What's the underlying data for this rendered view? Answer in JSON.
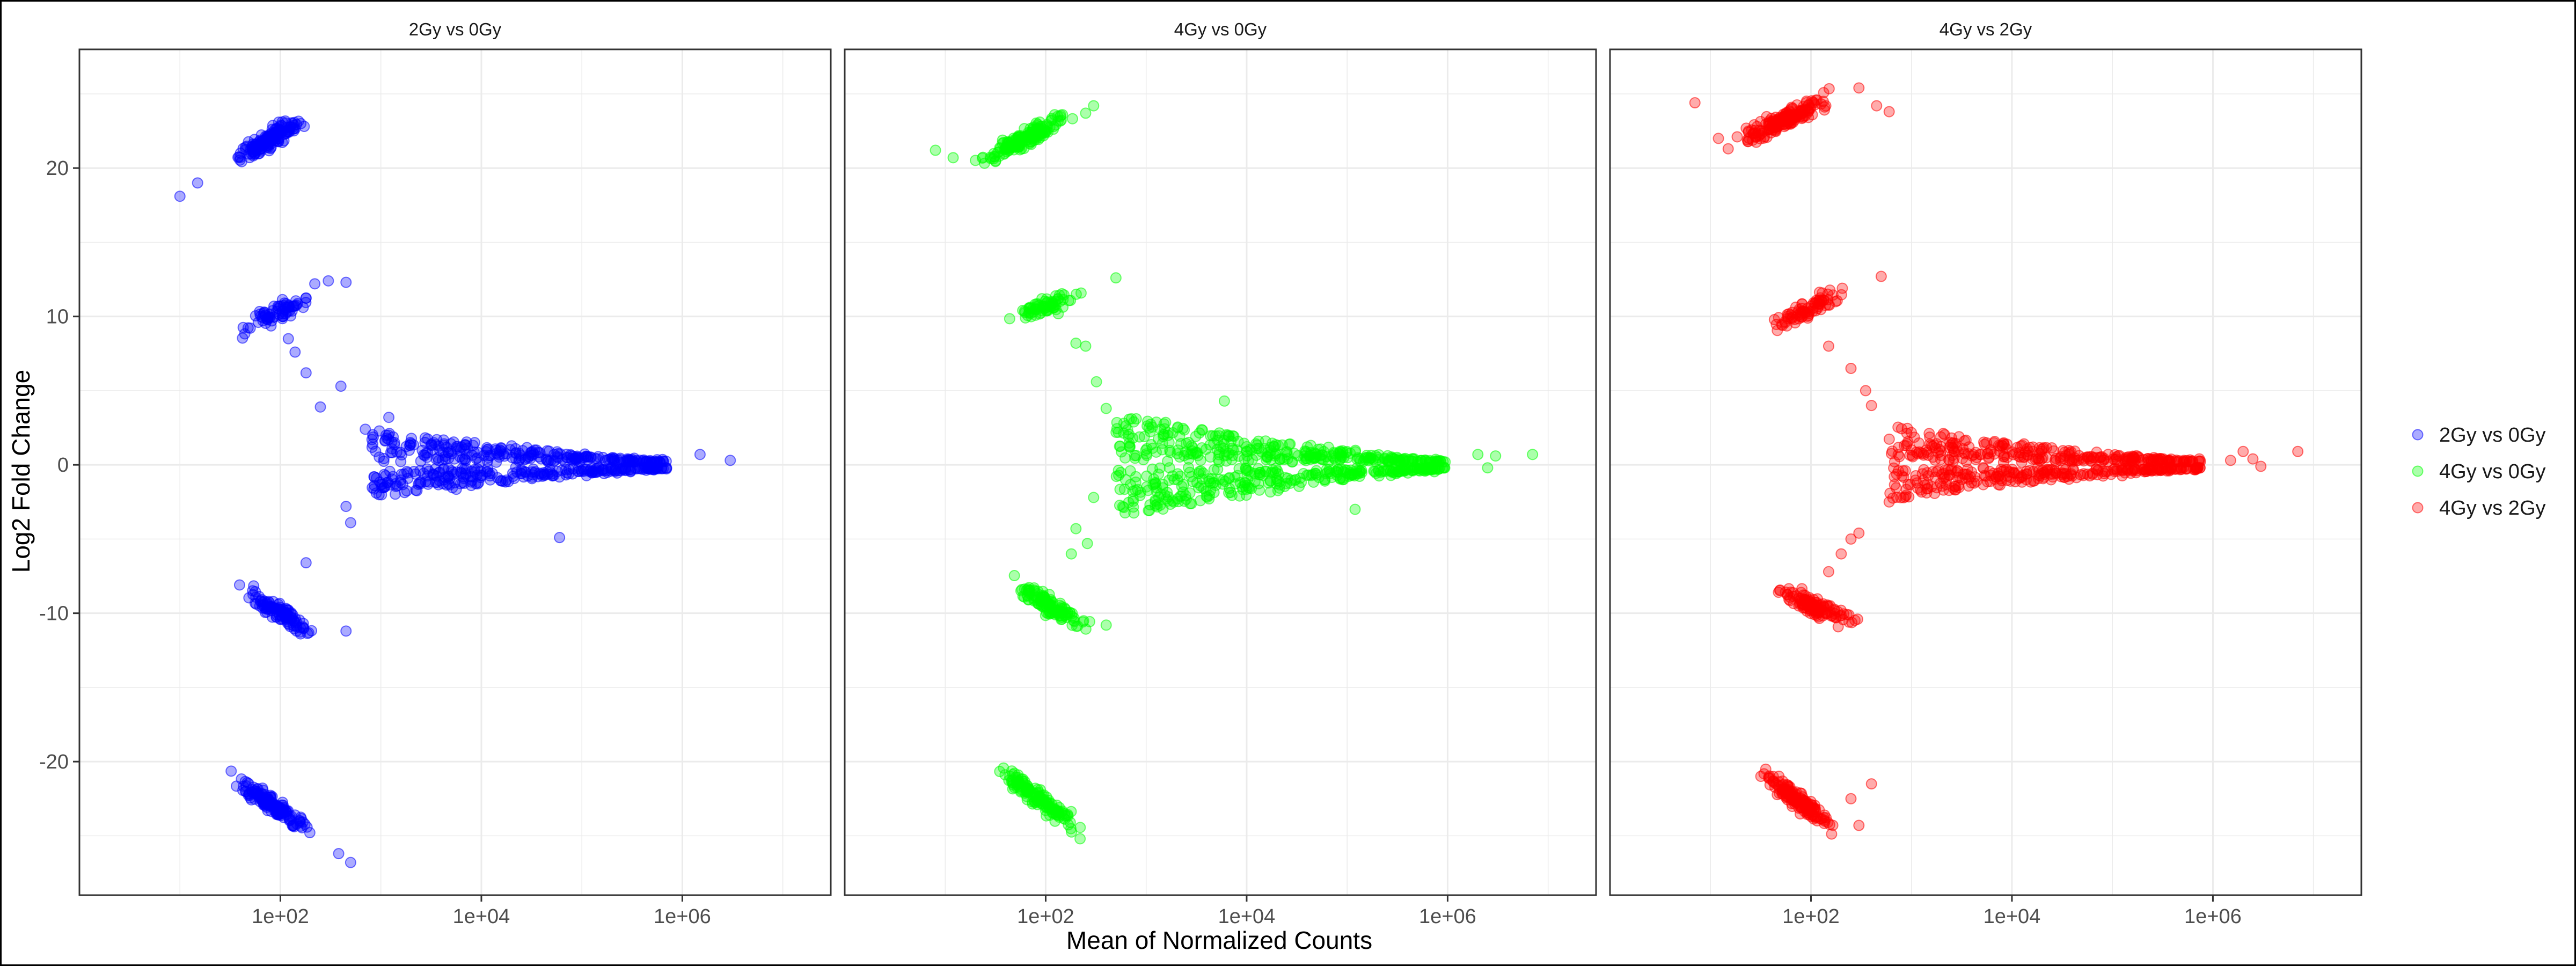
{
  "chart_data": {
    "type": "scatter",
    "xlabel": "Mean of Normalized Counts",
    "ylabel": "Log2 Fold Change",
    "x_scale": "log10",
    "xlim": [
      1,
      30000000
    ],
    "ylim": [
      -29,
      28
    ],
    "x_ticks": [
      100,
      10000,
      1000000
    ],
    "x_tick_labels": [
      "1e+02",
      "1e+04",
      "1e+06"
    ],
    "y_ticks": [
      -20,
      -10,
      0,
      10,
      20
    ],
    "y_tick_labels": [
      "-20",
      "-10",
      "0",
      "10",
      "20"
    ],
    "grid": true,
    "legend_position": "right",
    "panels": [
      {
        "title": "2Gy vs 0Gy",
        "series": "2Gy vs 0Gy",
        "color": "#0000ff",
        "clusters": [
          {
            "x_range": [
              30,
              200
            ],
            "y_range": [
              20.2,
              23.6
            ],
            "trend": "rising",
            "n": 160
          },
          {
            "x_range": [
              40,
              240
            ],
            "y_range": [
              9.0,
              11.6
            ],
            "trend": "rising",
            "n": 70
          },
          {
            "x_range": [
              35,
              250
            ],
            "y_range": [
              -11.5,
              -8.2
            ],
            "trend": "falling",
            "n": 110
          },
          {
            "x_range": [
              30,
              220
            ],
            "y_range": [
              -24.8,
              -21.0
            ],
            "trend": "falling",
            "n": 150
          },
          {
            "x_range": [
              800,
              700000
            ],
            "y_range": [
              0.1,
              2.2
            ],
            "trend": "converging",
            "n": 260
          },
          {
            "x_range": [
              800,
              700000
            ],
            "y_range": [
              -2.0,
              -0.1
            ],
            "trend": "converging",
            "n": 260
          }
        ],
        "points": [
          [
            10,
            18.1
          ],
          [
            15,
            19.0
          ],
          [
            300,
            12.4
          ],
          [
            220,
            12.2
          ],
          [
            120,
            8.5
          ],
          [
            140,
            7.6
          ],
          [
            180,
            6.2
          ],
          [
            250,
            3.9
          ],
          [
            400,
            5.3
          ],
          [
            500,
            -3.9
          ],
          [
            450,
            -2.8
          ],
          [
            900,
            -1.9
          ],
          [
            60000,
            -4.9
          ],
          [
            3000000,
            0.3
          ],
          [
            1500000,
            0.7
          ],
          [
            450,
            12.3
          ],
          [
            180,
            -6.6
          ],
          [
            450,
            -11.2
          ],
          [
            380,
            -26.2
          ],
          [
            500,
            -26.8
          ],
          [
            700,
            2.4
          ],
          [
            1200,
            3.2
          ]
        ]
      },
      {
        "title": "4Gy vs 0Gy",
        "series": "4Gy vs 0Gy",
        "color": "#00ff00",
        "clusters": [
          {
            "x_range": [
              20,
              200
            ],
            "y_range": [
              20.3,
              23.8
            ],
            "trend": "rising",
            "n": 160
          },
          {
            "x_range": [
              40,
              250
            ],
            "y_range": [
              9.5,
              11.8
            ],
            "trend": "rising",
            "n": 70
          },
          {
            "x_range": [
              40,
              320
            ],
            "y_range": [
              -11.3,
              -7.8
            ],
            "trend": "falling",
            "n": 120
          },
          {
            "x_range": [
              30,
              250
            ],
            "y_range": [
              -24.8,
              -20.3
            ],
            "trend": "falling",
            "n": 150
          },
          {
            "x_range": [
              500,
              1000000
            ],
            "y_range": [
              0.1,
              3.2
            ],
            "trend": "converging",
            "n": 320
          },
          {
            "x_range": [
              500,
              1000000
            ],
            "y_range": [
              -3.4,
              -0.1
            ],
            "trend": "converging",
            "n": 320
          }
        ],
        "points": [
          [
            8,
            21.2
          ],
          [
            12,
            20.7
          ],
          [
            300,
            24.2
          ],
          [
            250,
            23.7
          ],
          [
            500,
            12.6
          ],
          [
            200,
            8.2
          ],
          [
            250,
            8.0
          ],
          [
            320,
            5.6
          ],
          [
            400,
            3.8
          ],
          [
            600,
            2.8
          ],
          [
            300,
            -2.2
          ],
          [
            200,
            -4.3
          ],
          [
            180,
            -6.0
          ],
          [
            260,
            -5.3
          ],
          [
            400,
            -10.8
          ],
          [
            220,
            -25.2
          ],
          [
            2000000,
            0.7
          ],
          [
            3000000,
            0.6
          ],
          [
            7000000,
            0.7
          ],
          [
            2500000,
            -0.2
          ],
          [
            120000,
            -3.0
          ],
          [
            6000,
            4.3
          ]
        ]
      },
      {
        "title": "4Gy vs 2Gy",
        "series": "4Gy vs 2Gy",
        "color": "#ff0000",
        "clusters": [
          {
            "x_range": [
              15,
              200
            ],
            "y_range": [
              21.5,
              25.0
            ],
            "trend": "rising",
            "n": 170
          },
          {
            "x_range": [
              30,
              250
            ],
            "y_range": [
              9.0,
              11.8
            ],
            "trend": "rising",
            "n": 80
          },
          {
            "x_range": [
              40,
              320
            ],
            "y_range": [
              -10.8,
              -8.4
            ],
            "trend": "falling",
            "n": 120
          },
          {
            "x_range": [
              30,
              200
            ],
            "y_range": [
              -24.8,
              -20.6
            ],
            "trend": "falling",
            "n": 160
          },
          {
            "x_range": [
              600,
              800000
            ],
            "y_range": [
              0.1,
              2.4
            ],
            "trend": "converging",
            "n": 280
          },
          {
            "x_range": [
              600,
              800000
            ],
            "y_range": [
              -2.1,
              -0.1
            ],
            "trend": "converging",
            "n": 280
          }
        ],
        "points": [
          [
            7,
            24.4
          ],
          [
            12,
            22.0
          ],
          [
            15,
            21.3
          ],
          [
            300,
            25.4
          ],
          [
            450,
            24.2
          ],
          [
            600,
            23.8
          ],
          [
            500,
            12.7
          ],
          [
            150,
            8.0
          ],
          [
            250,
            6.5
          ],
          [
            350,
            5.0
          ],
          [
            400,
            4.0
          ],
          [
            200,
            -6.0
          ],
          [
            250,
            -5.0
          ],
          [
            150,
            -7.2
          ],
          [
            300,
            -4.6
          ],
          [
            600,
            -2.5
          ],
          [
            250,
            -22.5
          ],
          [
            400,
            -21.5
          ],
          [
            300,
            -24.3
          ],
          [
            2000000,
            0.9
          ],
          [
            2500000,
            0.4
          ],
          [
            7000000,
            0.9
          ],
          [
            1500000,
            0.3
          ],
          [
            3000000,
            -0.1
          ]
        ]
      }
    ],
    "legend": {
      "entries": [
        {
          "label": "2Gy vs 0Gy",
          "color": "#0000ff"
        },
        {
          "label": "4Gy vs 0Gy",
          "color": "#00ff00"
        },
        {
          "label": "4Gy vs 2Gy",
          "color": "#ff0000"
        }
      ]
    }
  }
}
